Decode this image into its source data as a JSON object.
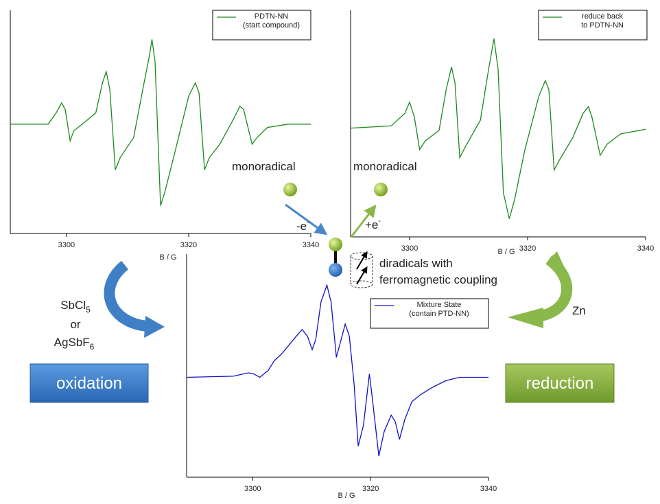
{
  "chart_data": [
    {
      "type": "line",
      "xlabel": "B / G",
      "xlim": [
        3290.8,
        3340
      ],
      "xticks": [
        3300,
        3320,
        3340
      ],
      "ylim": [
        -1,
        1
      ],
      "x": [
        3290.8,
        3297.0,
        3298.3,
        3299.2,
        3299.8,
        3300.6,
        3301.2,
        3302.6,
        3304.8,
        3305.9,
        3306.5,
        3307.1,
        3308.0,
        3308.8,
        3311.0,
        3312.7,
        3313.6,
        3314.0,
        3314.5,
        3315.4,
        3316.1,
        3317.8,
        3320.0,
        3321.1,
        3321.7,
        3322.6,
        3323.4,
        3325.1,
        3327.3,
        3328.4,
        3329.0,
        3330.4,
        3331.2,
        3332.9,
        3336.3,
        3340
      ],
      "series": [
        {
          "name": "PDTN-NN\n(start compound)",
          "color": "#1a8a1a",
          "values": [
            -0.02,
            -0.02,
            0.08,
            0.17,
            0.11,
            -0.17,
            -0.08,
            -0.02,
            0.08,
            0.35,
            0.45,
            0.29,
            -0.43,
            -0.32,
            -0.14,
            0.35,
            0.6,
            0.74,
            0.54,
            -0.75,
            -0.63,
            -0.26,
            0.23,
            0.35,
            0.26,
            -0.43,
            -0.32,
            -0.2,
            0.02,
            0.14,
            0.11,
            -0.2,
            -0.14,
            -0.05,
            -0.02,
            -0.02
          ]
        }
      ]
    },
    {
      "type": "line",
      "xlabel": "B / G",
      "xlim": [
        3290,
        3340
      ],
      "xticks": [
        3300,
        3320,
        3340
      ],
      "ylim": [
        -1,
        1
      ],
      "x": [
        3290,
        3296.9,
        3299.2,
        3300,
        3300.8,
        3301.7,
        3302.7,
        3305,
        3306.2,
        3307.1,
        3307.7,
        3308.5,
        3309.4,
        3312,
        3313.4,
        3314.3,
        3315,
        3315.9,
        3316.9,
        3317.8,
        3319.5,
        3321.9,
        3323,
        3323.6,
        3324.5,
        3325.3,
        3327.7,
        3329.4,
        3330.3,
        3330.9,
        3332.3,
        3333.5,
        3335.8,
        3340
      ],
      "series": [
        {
          "name": "reduce back\nto PDTN-NN",
          "color": "#1a8a1a",
          "values": [
            -0.04,
            -0.02,
            0.09,
            0.19,
            0.06,
            -0.23,
            -0.15,
            -0.06,
            0.3,
            0.5,
            0.36,
            -0.3,
            -0.21,
            0.03,
            0.48,
            0.75,
            0.48,
            -0.61,
            -0.84,
            -0.67,
            -0.24,
            0.24,
            0.38,
            0.3,
            -0.41,
            -0.33,
            -0.12,
            0.09,
            0.15,
            0.06,
            -0.28,
            -0.18,
            -0.09,
            -0.05
          ]
        }
      ]
    },
    {
      "type": "line",
      "xlabel": "B / G",
      "xlim": [
        3288.8,
        3340
      ],
      "xticks": [
        3300,
        3320,
        3340
      ],
      "ylim": [
        -1.01,
        1
      ],
      "x": [
        3288.8,
        3296.7,
        3299.3,
        3300.2,
        3301.2,
        3302.6,
        3303.7,
        3304.9,
        3306,
        3307.4,
        3308.4,
        3309.3,
        3310.1,
        3310.7,
        3311.6,
        3312.6,
        3313.3,
        3314.2,
        3315,
        3315.7,
        3316.4,
        3317.2,
        3317.9,
        3318.8,
        3319.8,
        3320.3,
        3321.4,
        3322.3,
        3323.5,
        3324.2,
        3324.9,
        3325.8,
        3327,
        3328.4,
        3330.5,
        3332.8,
        3335.1,
        3340
      ],
      "series": [
        {
          "name": "Mixture State\n(contain PTD-NN)",
          "color": "#1010cc",
          "values": [
            -0.11,
            -0.1,
            -0.07,
            -0.08,
            -0.11,
            -0.05,
            0.04,
            0.1,
            0.17,
            0.26,
            0.32,
            0.26,
            0.14,
            0.23,
            0.57,
            0.72,
            0.57,
            0.07,
            0.23,
            0.37,
            0.26,
            -0.17,
            -0.73,
            -0.54,
            -0.08,
            -0.3,
            -0.82,
            -0.6,
            -0.45,
            -0.51,
            -0.67,
            -0.49,
            -0.33,
            -0.27,
            -0.2,
            -0.14,
            -0.11,
            -0.11
          ]
        }
      ]
    }
  ],
  "annotations": {
    "monoradical_left": "monoradical",
    "monoradical_right": "monoradical",
    "minus_e": "-e",
    "minus_e_sup": "-",
    "plus_e": "+e",
    "plus_e_sup": "-",
    "diradicals_line1": "diradicals with",
    "diradicals_line2": "ferromagnetic coupling",
    "oxidant_line1": "SbCl",
    "oxidant_line1_sub": "5",
    "oxidant_line2": "or",
    "oxidant_line3": "AgSbF",
    "oxidant_line3_sub": "6",
    "oxidation": "oxidation",
    "reduction": "reduction",
    "reductant": "Zn"
  }
}
